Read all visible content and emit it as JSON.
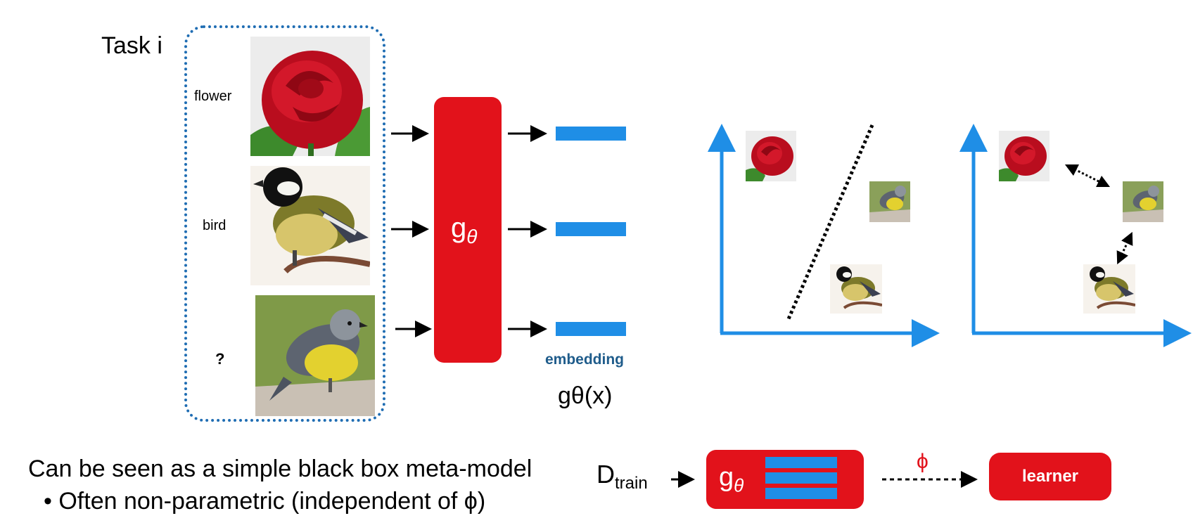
{
  "task": {
    "title": "Task i",
    "labels": [
      "flower",
      "bird",
      "?"
    ]
  },
  "encoder": {
    "symbol": "g",
    "subscript": "θ"
  },
  "embedding": {
    "label": "embedding",
    "formula": "gθ(x)"
  },
  "bottom": {
    "line1": "Can be seen as a simple black box meta-model",
    "line2": "•  Often non-parametric (independent of ϕ)"
  },
  "pipeline": {
    "dtrain_main": "D",
    "dtrain_sub": "train",
    "phi": "ϕ",
    "learner": "learner"
  },
  "colors": {
    "accent_red": "#e2121b",
    "embedding_blue": "#1f8ee6",
    "axis_blue": "#1f8ee6",
    "task_border": "#1f6db3"
  },
  "icons": [
    "rose-image",
    "great-tit-bird-image",
    "yellow-robin-bird-image"
  ]
}
